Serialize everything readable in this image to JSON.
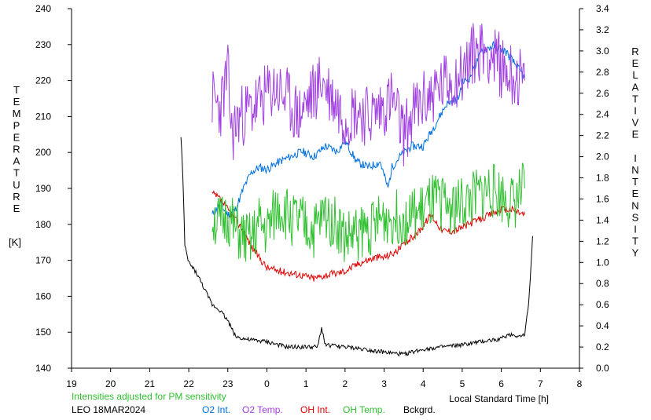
{
  "chart_data": {
    "type": "line",
    "left_axis": {
      "label_letters": [
        "T",
        "E",
        "M",
        "P",
        "E",
        "R",
        "A",
        "T",
        "U",
        "R",
        "E"
      ],
      "unit": "[K]",
      "range": [
        140,
        240
      ],
      "ticks": [
        "140",
        "150",
        "160",
        "170",
        "180",
        "190",
        "200",
        "210",
        "220",
        "230",
        "240"
      ]
    },
    "right_axis": {
      "label_letters": [
        "R",
        "E",
        "L",
        "A",
        "T",
        "I",
        "V",
        "E",
        "",
        "I",
        "N",
        "T",
        "E",
        "N",
        "S",
        "I",
        "T",
        "Y"
      ],
      "range": [
        0.0,
        3.4
      ],
      "ticks": [
        "0.0",
        "0.2",
        "0.4",
        "0.6",
        "0.8",
        "1.0",
        "1.2",
        "1.4",
        "1.6",
        "1.8",
        "2.0",
        "2.2",
        "2.4",
        "2.6",
        "2.8",
        "3.0",
        "3.2",
        "3.4"
      ]
    },
    "x_axis": {
      "label": "Local Standard Time [h]",
      "range": [
        19,
        32
      ],
      "ticks": [
        "19",
        "20",
        "21",
        "22",
        "23",
        "0",
        "1",
        "2",
        "3",
        "4",
        "5",
        "6",
        "7",
        "8"
      ]
    },
    "note": "Intensities adjusted for PM sensitivity",
    "station": "LEO 18MAR2024",
    "series": [
      {
        "name": "O2 Int.",
        "color": "#0070e0",
        "axis": "right",
        "x": [
          22.6,
          22.8,
          23.0,
          23.2,
          23.4,
          23.6,
          23.8,
          24.0,
          24.3,
          24.6,
          24.9,
          25.2,
          25.5,
          25.8,
          26.0,
          26.3,
          26.6,
          26.9,
          27.1,
          27.2,
          27.4,
          27.7,
          28.0,
          28.3,
          28.6,
          28.9,
          29.0,
          29.2,
          29.5,
          29.8,
          30.1,
          30.4,
          30.6
        ],
        "values": [
          1.45,
          1.55,
          1.45,
          1.5,
          1.7,
          1.85,
          1.9,
          1.88,
          1.95,
          2.0,
          2.05,
          2.0,
          2.1,
          2.05,
          2.15,
          1.95,
          1.9,
          1.95,
          1.7,
          1.9,
          2.0,
          2.1,
          2.1,
          2.3,
          2.5,
          2.55,
          2.7,
          2.75,
          3.0,
          3.05,
          3.0,
          2.85,
          2.75
        ]
      },
      {
        "name": "O2 Temp.",
        "color": "#a040e0",
        "axis": "left",
        "x": [
          22.6,
          22.8,
          23.0,
          23.1,
          23.3,
          23.6,
          23.9,
          24.2,
          24.5,
          24.8,
          25.1,
          25.4,
          25.7,
          26.0,
          26.3,
          26.6,
          26.9,
          27.2,
          27.5,
          27.8,
          28.1,
          28.4,
          28.7,
          29.0,
          29.3,
          29.6,
          29.9,
          30.2,
          30.6
        ],
        "values": [
          215,
          212,
          222,
          205,
          210,
          212,
          215,
          218,
          215,
          210,
          215,
          220,
          215,
          210,
          212,
          210,
          212,
          215,
          205,
          212,
          215,
          218,
          220,
          222,
          228,
          229,
          225,
          222,
          220
        ]
      },
      {
        "name": "OH Int.",
        "color": "#e00000",
        "axis": "right",
        "x": [
          22.6,
          22.8,
          23.0,
          23.2,
          23.4,
          23.6,
          23.8,
          24.0,
          24.3,
          24.6,
          24.9,
          25.2,
          25.5,
          25.8,
          26.0,
          26.4,
          26.8,
          27.0,
          27.3,
          27.6,
          27.9,
          28.2,
          28.5,
          28.8,
          29.1,
          29.4,
          29.7,
          30.0,
          30.3,
          30.6
        ],
        "values": [
          1.65,
          1.6,
          1.5,
          1.4,
          1.3,
          1.15,
          1.05,
          0.95,
          0.92,
          0.9,
          0.88,
          0.85,
          0.88,
          0.9,
          0.92,
          1.0,
          1.05,
          1.05,
          1.1,
          1.2,
          1.3,
          1.45,
          1.3,
          1.3,
          1.35,
          1.4,
          1.45,
          1.5,
          1.5,
          1.45
        ]
      },
      {
        "name": "OH Temp.",
        "color": "#30c030",
        "axis": "left",
        "x": [
          22.6,
          22.8,
          23.0,
          23.2,
          23.4,
          23.6,
          23.8,
          24.0,
          24.3,
          24.6,
          24.9,
          25.2,
          25.5,
          25.8,
          26.0,
          26.4,
          26.8,
          27.0,
          27.3,
          27.6,
          27.9,
          28.2,
          28.5,
          28.8,
          29.1,
          29.4,
          29.7,
          30.0,
          30.3,
          30.6
        ],
        "values": [
          182,
          180,
          182,
          178,
          176,
          175,
          180,
          178,
          185,
          182,
          180,
          178,
          183,
          180,
          176,
          178,
          180,
          182,
          182,
          182,
          183,
          186,
          186,
          185,
          186,
          188,
          190,
          188,
          186,
          190
        ]
      },
      {
        "name": "Bckgrd.",
        "color": "#000000",
        "axis": "right",
        "x": [
          21.8,
          21.85,
          21.9,
          22.0,
          22.2,
          22.4,
          22.6,
          22.8,
          23.0,
          23.2,
          23.5,
          24.0,
          24.5,
          25.0,
          25.3,
          25.4,
          25.5,
          26.0,
          26.5,
          27.0,
          27.5,
          28.0,
          28.5,
          29.0,
          29.5,
          30.0,
          30.2,
          30.5,
          30.6,
          30.7,
          30.8
        ],
        "values": [
          2.2,
          1.8,
          1.15,
          1.0,
          0.9,
          0.75,
          0.6,
          0.55,
          0.45,
          0.3,
          0.27,
          0.25,
          0.2,
          0.2,
          0.2,
          0.38,
          0.22,
          0.2,
          0.18,
          0.15,
          0.13,
          0.18,
          0.2,
          0.22,
          0.25,
          0.28,
          0.32,
          0.3,
          0.33,
          0.6,
          1.25
        ]
      }
    ]
  }
}
